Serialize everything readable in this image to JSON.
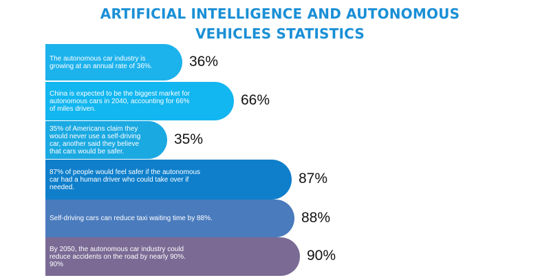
{
  "title_line1": "ARTIFICIAL INTELLIGENCE AND AUTONOMOUS",
  "title_line2": "VEHICLES STATISTICS",
  "colors": {
    "title": "#1a8fd6",
    "bars": [
      "#1cb2ec",
      "#12b6f0",
      "#1ba9e2",
      "#0f7fcb",
      "#4a7bbd",
      "#7a6a94"
    ]
  },
  "chart_data": {
    "type": "bar",
    "orientation": "horizontal",
    "title": "ARTIFICIAL INTELLIGENCE AND AUTONOMOUS VEHICLES STATISTICS",
    "categories": [
      "The autonomous car industry is\ngrowing at an annual rate of 36%.",
      "China is expected to be the biggest market for\nautonomous cars in 2040, accounting for 66%\nof miles driven.",
      "35% of Americans claim they\nwould never use a self-driving\ncar, another said they believe\nthat cars would be safer.",
      "87% of people would feel safer if the autonomous\ncar had a human driver who could take over if\nneeded.",
      "Self-driving cars can reduce taxi waiting time by 88%.",
      "By 2050, the autonomous car industry could\nreduce accidents on the road by nearly 90%.\n90%"
    ],
    "values": [
      36,
      66,
      35,
      87,
      88,
      90
    ],
    "value_labels": [
      "36%",
      "66%",
      "35%",
      "87%",
      "88%",
      "90%"
    ]
  }
}
